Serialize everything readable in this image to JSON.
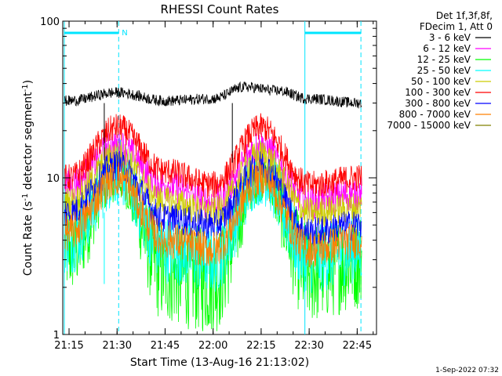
{
  "chart_data": {
    "type": "line",
    "title": "RHESSI Count Rates",
    "xlabel": "Start Time (13-Aug-16 21:13:02)",
    "ylabel_main": "Count Rate (s",
    "ylabel_sup1": "-1",
    "ylabel_mid": " detector segment",
    "ylabel_sup2": "-1",
    "ylabel_end": ")",
    "y_scale": "log",
    "ylim": [
      1,
      100
    ],
    "xlim_minutes": [
      "21:13:02",
      "22:51:02"
    ],
    "x_ticks": [
      {
        "t": "21:15",
        "label": "21:15"
      },
      {
        "t": "21:30",
        "label": "21:30"
      },
      {
        "t": "21:45",
        "label": "21:45"
      },
      {
        "t": "22:00",
        "label": "22:00"
      },
      {
        "t": "22:15",
        "label": "22:15"
      },
      {
        "t": "22:30",
        "label": "22:30"
      },
      {
        "t": "22:45",
        "label": "22:45"
      }
    ],
    "y_ticks": [
      {
        "v": 1,
        "label": "1"
      },
      {
        "v": 10,
        "label": "10"
      },
      {
        "v": 100,
        "label": "100"
      }
    ],
    "legend_header": [
      "Det 1f,3f,8f,",
      "FDecim 1, Att 0"
    ],
    "legend_placement": "right",
    "night_marker_label": "N",
    "timestamp": "1-Sep-2022 07:32",
    "night_intervals": [
      {
        "start": "21:13:02",
        "end": "21:30:30"
      },
      {
        "start": "22:28:40",
        "end": "22:46:10"
      }
    ],
    "series": [
      {
        "name": "3 - 6 keV",
        "color": "#000000",
        "values": [
          {
            "t": "21:15",
            "v": 31
          },
          {
            "t": "21:30",
            "v": 35
          },
          {
            "t": "21:45",
            "v": 31
          },
          {
            "t": "22:00",
            "v": 32
          },
          {
            "t": "22:10",
            "v": 38
          },
          {
            "t": "22:20",
            "v": 36
          },
          {
            "t": "22:30",
            "v": 32
          },
          {
            "t": "22:46",
            "v": 30
          }
        ]
      },
      {
        "name": "6 - 12 keV",
        "color": "#ff00ff",
        "values": [
          {
            "t": "21:15",
            "v": 9
          },
          {
            "t": "21:30",
            "v": 16
          },
          {
            "t": "21:45",
            "v": 9
          },
          {
            "t": "22:00",
            "v": 7
          },
          {
            "t": "22:15",
            "v": 16
          },
          {
            "t": "22:30",
            "v": 7
          },
          {
            "t": "22:46",
            "v": 8
          }
        ]
      },
      {
        "name": "12 - 25 keV",
        "color": "#00ff00",
        "values": [
          {
            "t": "21:15",
            "v": 3.5
          },
          {
            "t": "21:30",
            "v": 10
          },
          {
            "t": "21:45",
            "v": 2.5
          },
          {
            "t": "22:00",
            "v": 2.2
          },
          {
            "t": "22:15",
            "v": 10
          },
          {
            "t": "22:30",
            "v": 2.5
          },
          {
            "t": "22:46",
            "v": 3
          }
        ]
      },
      {
        "name": "25 - 50 keV",
        "color": "#00ffff",
        "values": [
          {
            "t": "21:15",
            "v": 4
          },
          {
            "t": "21:30",
            "v": 11
          },
          {
            "t": "21:45",
            "v": 3.5
          },
          {
            "t": "22:00",
            "v": 3
          },
          {
            "t": "22:15",
            "v": 11
          },
          {
            "t": "22:30",
            "v": 3
          },
          {
            "t": "22:46",
            "v": 3.5
          }
        ]
      },
      {
        "name": "50 - 100 keV",
        "color": "#cccc00",
        "values": [
          {
            "t": "21:15",
            "v": 7
          },
          {
            "t": "21:30",
            "v": 14
          },
          {
            "t": "21:45",
            "v": 7
          },
          {
            "t": "22:00",
            "v": 6
          },
          {
            "t": "22:15",
            "v": 14
          },
          {
            "t": "22:30",
            "v": 6
          },
          {
            "t": "22:46",
            "v": 6.5
          }
        ]
      },
      {
        "name": "100 - 300 keV",
        "color": "#ff0000",
        "values": [
          {
            "t": "21:15",
            "v": 10
          },
          {
            "t": "21:30",
            "v": 21
          },
          {
            "t": "21:45",
            "v": 11
          },
          {
            "t": "22:00",
            "v": 9
          },
          {
            "t": "22:15",
            "v": 21
          },
          {
            "t": "22:30",
            "v": 9
          },
          {
            "t": "22:46",
            "v": 10
          }
        ]
      },
      {
        "name": "300 - 800 keV",
        "color": "#0000ff",
        "values": [
          {
            "t": "21:15",
            "v": 6
          },
          {
            "t": "21:30",
            "v": 12
          },
          {
            "t": "21:45",
            "v": 5.5
          },
          {
            "t": "22:00",
            "v": 5
          },
          {
            "t": "22:15",
            "v": 12
          },
          {
            "t": "22:30",
            "v": 4.5
          },
          {
            "t": "22:46",
            "v": 5
          }
        ]
      },
      {
        "name": "800 - 7000 keV",
        "color": "#ff8000",
        "values": [
          {
            "t": "21:15",
            "v": 4.5
          },
          {
            "t": "21:30",
            "v": 10
          },
          {
            "t": "21:45",
            "v": 4
          },
          {
            "t": "22:00",
            "v": 3.5
          },
          {
            "t": "22:15",
            "v": 10
          },
          {
            "t": "22:30",
            "v": 3.5
          },
          {
            "t": "22:46",
            "v": 4
          }
        ]
      },
      {
        "name": "7000 - 15000 keV",
        "color": "#808000",
        "values": []
      }
    ]
  }
}
